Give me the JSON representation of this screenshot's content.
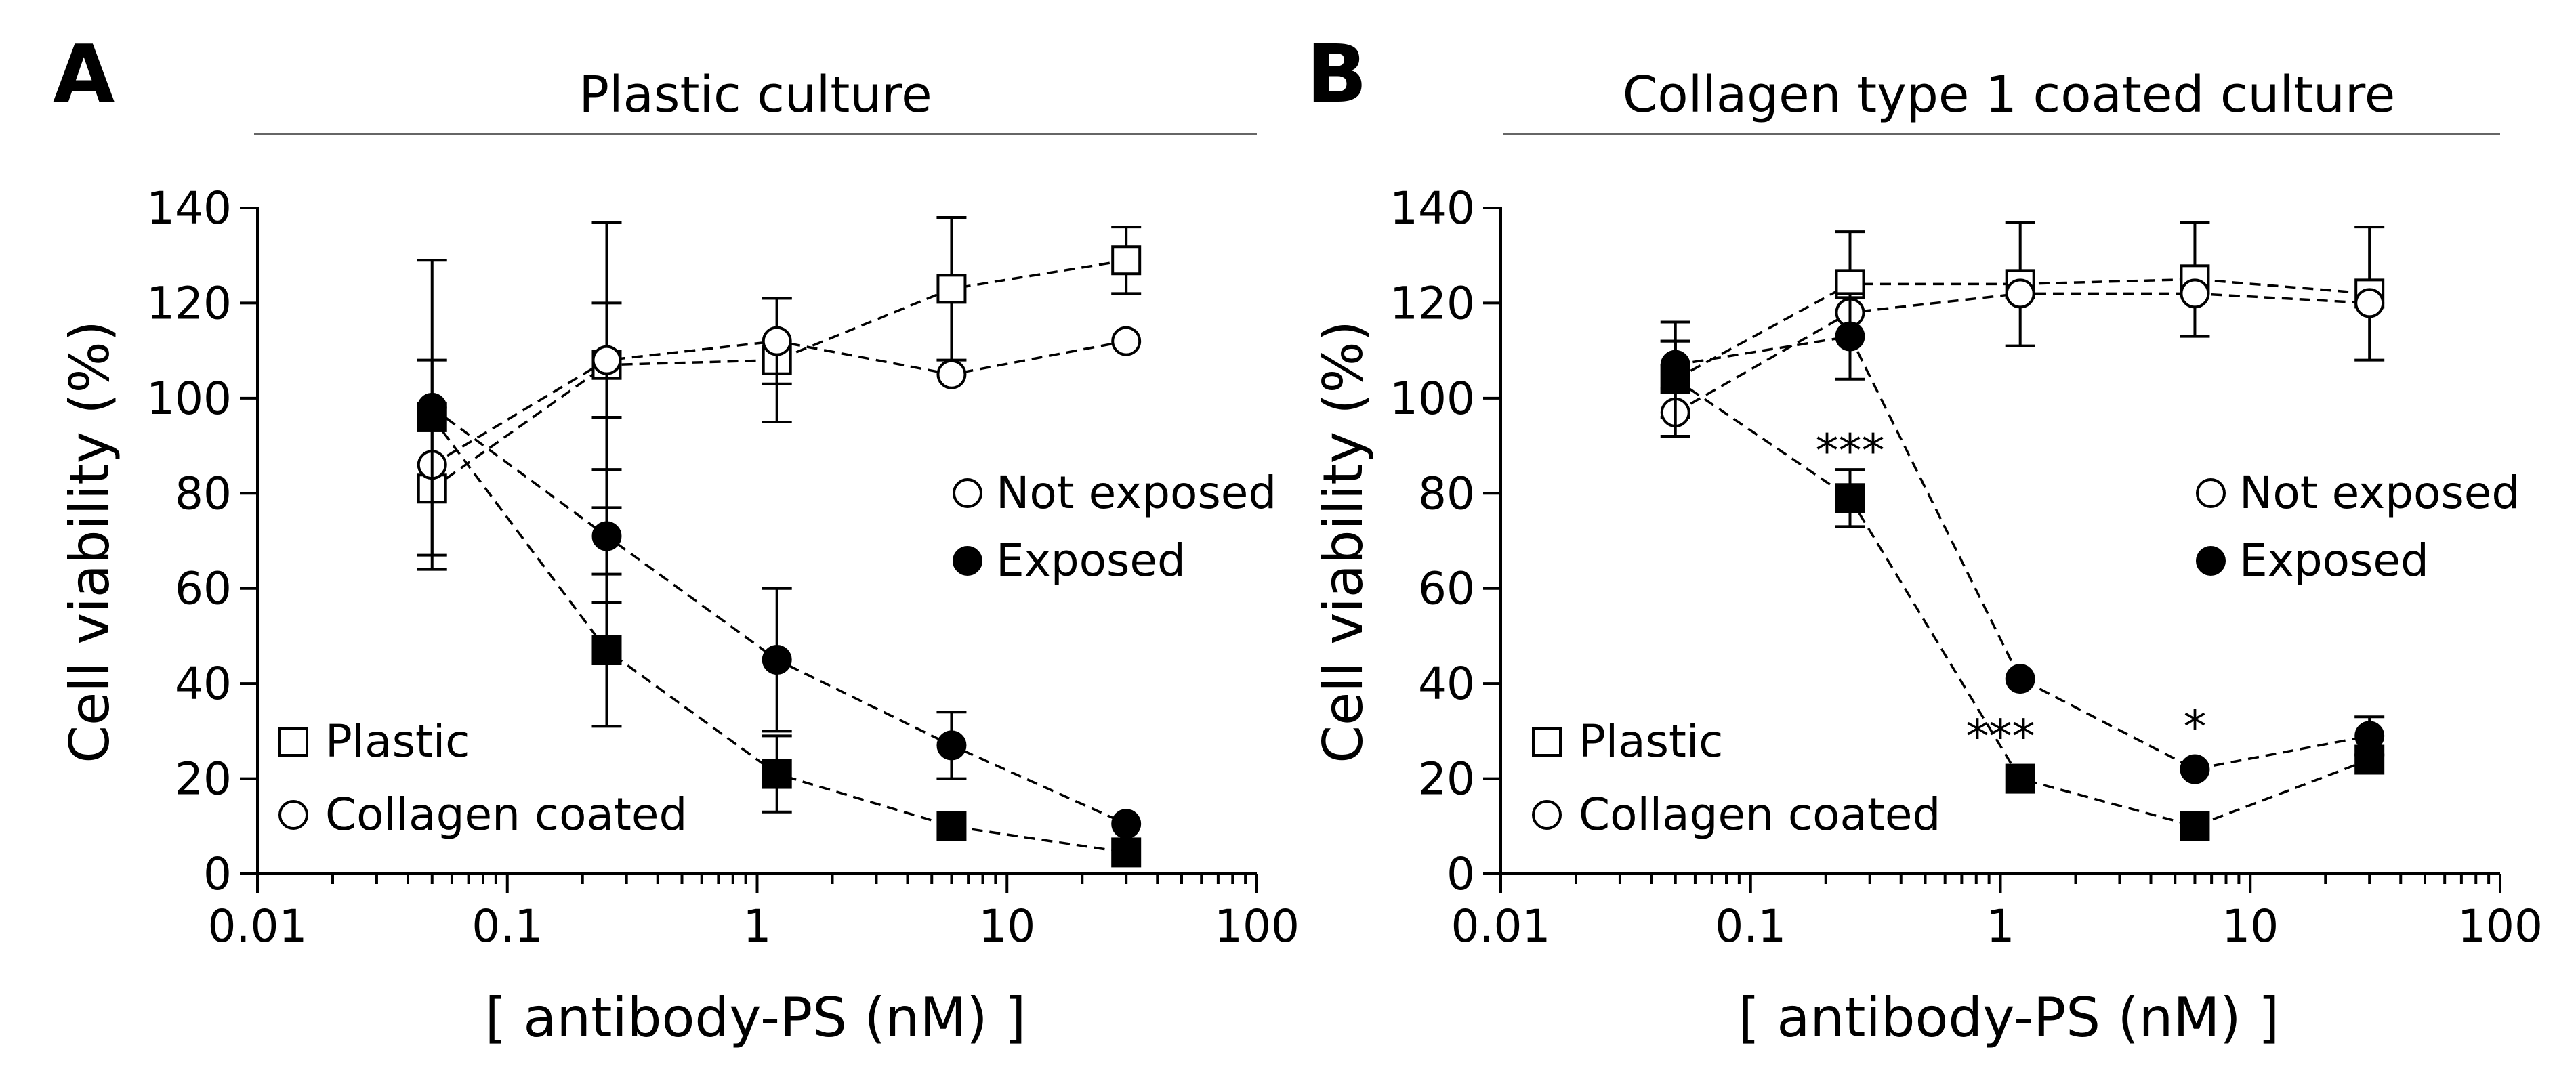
{
  "chart_data": [
    {
      "panel": "A",
      "title": "Plastic culture",
      "type": "scatter",
      "x_scale": "log",
      "xlabel": "[ antibody-PS (nM) ]",
      "ylabel": "Cell viability (%)",
      "xlim": [
        0.01,
        100
      ],
      "ylim": [
        0,
        140
      ],
      "x_ticks": [
        0.01,
        0.1,
        1,
        10,
        100
      ],
      "x_tick_labels": [
        "0.01",
        "0.1",
        "1",
        "10",
        "100"
      ],
      "y_ticks": [
        0,
        20,
        40,
        60,
        80,
        100,
        120,
        140
      ],
      "y_tick_labels": [
        "0",
        "20",
        "40",
        "60",
        "80",
        "100",
        "120",
        "140"
      ],
      "legend_treatment": [
        {
          "label": "Not exposed",
          "marker": "open-circle"
        },
        {
          "label": "Exposed",
          "marker": "filled-circle"
        }
      ],
      "legend_substrate": [
        {
          "label": "Plastic",
          "marker": "open-square"
        },
        {
          "label": "Collagen coated",
          "marker": "open-circle"
        }
      ],
      "series": [
        {
          "name": "Plastic, Not exposed",
          "marker": "square",
          "filled": false,
          "x": [
            0.05,
            0.25,
            1.2,
            6,
            30
          ],
          "y": [
            81,
            107,
            108,
            123,
            129
          ],
          "err": [
            0,
            30,
            13,
            15,
            7
          ]
        },
        {
          "name": "Collagen coated, Not exposed",
          "marker": "circle",
          "filled": false,
          "x": [
            0.05,
            0.25,
            1.2,
            6,
            30
          ],
          "y": [
            86,
            108,
            112,
            105,
            112
          ],
          "err": [
            22,
            12,
            9,
            0,
            0
          ]
        },
        {
          "name": "Plastic, Exposed",
          "marker": "square",
          "filled": true,
          "x": [
            0.05,
            0.25,
            1.2,
            6,
            30
          ],
          "y": [
            96,
            47,
            21,
            10,
            4.5
          ],
          "err": [
            0,
            16,
            8,
            0,
            0
          ]
        },
        {
          "name": "Collagen coated, Exposed",
          "marker": "circle",
          "filled": true,
          "x": [
            0.05,
            0.25,
            1.2,
            6,
            30
          ],
          "y": [
            98,
            71,
            45,
            27,
            10.5
          ],
          "err": [
            31,
            14,
            15,
            7,
            0
          ]
        }
      ],
      "annotations": []
    },
    {
      "panel": "B",
      "title": "Collagen type 1 coated culture",
      "type": "scatter",
      "x_scale": "log",
      "xlabel": "[ antibody-PS (nM) ]",
      "ylabel": "Cell viability (%)",
      "xlim": [
        0.01,
        100
      ],
      "ylim": [
        0,
        140
      ],
      "x_ticks": [
        0.01,
        0.1,
        1,
        10,
        100
      ],
      "x_tick_labels": [
        "0.01",
        "0.1",
        "1",
        "10",
        "100"
      ],
      "y_ticks": [
        0,
        20,
        40,
        60,
        80,
        100,
        120,
        140
      ],
      "y_tick_labels": [
        "0",
        "20",
        "40",
        "60",
        "80",
        "100",
        "120",
        "140"
      ],
      "legend_treatment": [
        {
          "label": "Not exposed",
          "marker": "open-circle"
        },
        {
          "label": "Exposed",
          "marker": "filled-circle"
        }
      ],
      "legend_substrate": [
        {
          "label": "Plastic",
          "marker": "open-square"
        },
        {
          "label": "Collagen coated",
          "marker": "open-circle"
        }
      ],
      "series": [
        {
          "name": "Plastic, Not exposed",
          "marker": "square",
          "filled": false,
          "x": [
            0.05,
            0.25,
            1.2,
            6,
            30
          ],
          "y": [
            104,
            124,
            124,
            125,
            122
          ],
          "err": [
            8,
            11,
            13,
            12,
            14
          ]
        },
        {
          "name": "Collagen coated, Not exposed",
          "marker": "circle",
          "filled": false,
          "x": [
            0.05,
            0.25,
            1.2,
            6,
            30
          ],
          "y": [
            97,
            118,
            122,
            122,
            120
          ],
          "err": [
            0,
            0,
            0,
            0,
            0
          ]
        },
        {
          "name": "Plastic, Exposed",
          "marker": "square",
          "filled": true,
          "x": [
            0.05,
            0.25,
            1.2,
            6,
            30
          ],
          "y": [
            104,
            79,
            20,
            10,
            24
          ],
          "err": [
            12,
            6,
            0,
            0,
            0
          ]
        },
        {
          "name": "Collagen coated, Exposed",
          "marker": "circle",
          "filled": true,
          "x": [
            0.05,
            0.25,
            1.2,
            6,
            30
          ],
          "y": [
            107,
            113,
            41,
            22,
            29
          ],
          "err": [
            5,
            9,
            0,
            0,
            4
          ]
        }
      ],
      "annotations": [
        {
          "text": "***",
          "x": 0.25,
          "y": 89
        },
        {
          "text": "***",
          "x": 1.0,
          "y": 29
        },
        {
          "text": "*",
          "x": 6,
          "y": 31
        }
      ]
    }
  ]
}
